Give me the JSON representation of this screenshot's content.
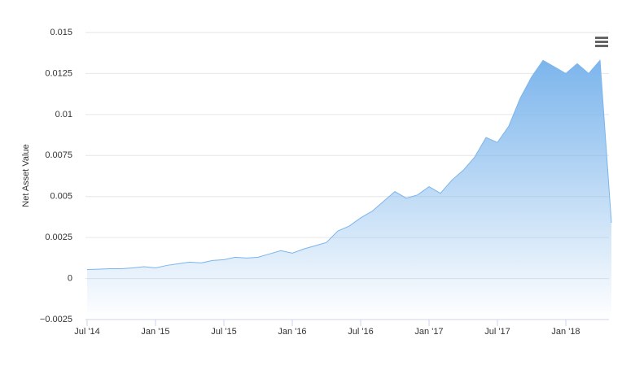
{
  "chart_data": {
    "type": "area",
    "y_axis_label": "Net Asset Value",
    "x": [
      "2014-07",
      "2014-08",
      "2014-09",
      "2014-10",
      "2014-11",
      "2014-12",
      "2015-01",
      "2015-02",
      "2015-03",
      "2015-04",
      "2015-05",
      "2015-06",
      "2015-07",
      "2015-08",
      "2015-09",
      "2015-10",
      "2015-11",
      "2015-12",
      "2016-01",
      "2016-02",
      "2016-03",
      "2016-04",
      "2016-05",
      "2016-06",
      "2016-07",
      "2016-08",
      "2016-09",
      "2016-10",
      "2016-11",
      "2016-12",
      "2017-01",
      "2017-02",
      "2017-03",
      "2017-04",
      "2017-05",
      "2017-06",
      "2017-07",
      "2017-08",
      "2017-09",
      "2017-10",
      "2017-11",
      "2017-12",
      "2018-01",
      "2018-02",
      "2018-03",
      "2018-04",
      "2018-05"
    ],
    "values": [
      0.00055,
      0.00057,
      0.0006,
      0.0006,
      0.00065,
      0.00072,
      0.00065,
      0.0008,
      0.0009,
      0.001,
      0.00095,
      0.0011,
      0.00115,
      0.0013,
      0.00125,
      0.0013,
      0.0015,
      0.0017,
      0.00155,
      0.0018,
      0.002,
      0.0022,
      0.0029,
      0.0032,
      0.0037,
      0.0041,
      0.0047,
      0.0053,
      0.0049,
      0.0051,
      0.0056,
      0.0052,
      0.006,
      0.0066,
      0.0074,
      0.0086,
      0.0083,
      0.0093,
      0.011,
      0.0123,
      0.0133,
      0.0129,
      0.0125,
      0.0131,
      0.0125,
      0.0133,
      0.0034
    ],
    "color": "#7cb5ec",
    "ylim": [
      -0.0025,
      0.015
    ],
    "yticks": [
      {
        "value": -0.0025,
        "label": "−0.0025"
      },
      0,
      0.0025,
      0.005,
      0.0075,
      0.01,
      0.0125,
      0.015
    ],
    "xticks": [
      {
        "value": "2014-07",
        "label": "Jul '14"
      },
      {
        "value": "2015-01",
        "label": "Jan '15"
      },
      {
        "value": "2015-07",
        "label": "Jul '15"
      },
      {
        "value": "2016-01",
        "label": "Jan '16"
      },
      {
        "value": "2016-07",
        "label": "Jul '16"
      },
      {
        "value": "2017-01",
        "label": "Jan '17"
      },
      {
        "value": "2017-07",
        "label": "Jul '17"
      },
      {
        "value": "2018-01",
        "label": "Jan '18"
      }
    ],
    "grid": true
  }
}
